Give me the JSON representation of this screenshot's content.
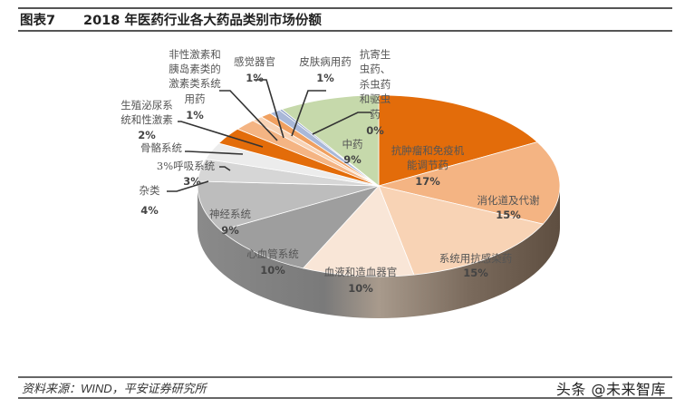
{
  "header": {
    "figure_label": "图表7",
    "title": "2018 年医药行业各大药品类别市场份额"
  },
  "footer": {
    "source": "资料来源：WIND，平安证券研究所",
    "watermark": "头条 @未来智库"
  },
  "chart_data": {
    "type": "pie",
    "title": "2018 年医药行业各大药品类别市场份额",
    "style": "3d-pie",
    "legend": "none (data labels on slices and leader lines)",
    "slices": [
      {
        "name": "抗肿瘤和免疫机能调节药",
        "value": 17,
        "label": "17%",
        "color": "#E36C0A"
      },
      {
        "name": "消化道及代谢",
        "value": 15,
        "label": "15%",
        "color": "#F4B483"
      },
      {
        "name": "系统用抗感染药",
        "value": 15,
        "label": "15%",
        "color": "#F8D3B5"
      },
      {
        "name": "血液和造血器官",
        "value": 10,
        "label": "10%",
        "color": "#F9E6D7"
      },
      {
        "name": "心血管系统",
        "value": 10,
        "label": "10%",
        "color": "#9E9E9E"
      },
      {
        "name": "神经系统",
        "value": 9,
        "label": "9%",
        "color": "#BDBDBD"
      },
      {
        "name": "杂类",
        "value": 4,
        "label": "4%",
        "color": "#D6D6D6"
      },
      {
        "name": "呼吸系统",
        "value": 3,
        "label": "3%",
        "color": "#ECECEC"
      },
      {
        "name": "骨骼系统",
        "value": 3,
        "label": "3%",
        "color": "#E36C0A"
      },
      {
        "name": "生殖泌尿系统和性激素",
        "value": 2,
        "label": "2%",
        "color": "#F4B483"
      },
      {
        "name": "非性激素和胰岛素类的激素类系统用药",
        "value": 1,
        "label": "1%",
        "color": "#F8D3B5"
      },
      {
        "name": "感觉器官",
        "value": 1,
        "label": "1%",
        "color": "#F0A060"
      },
      {
        "name": "皮肤病用药",
        "value": 1,
        "label": "1%",
        "color": "#A9B8D8"
      },
      {
        "name": "抗寄生虫药、杀虫药和驱虫药",
        "value": 0,
        "label": "0%",
        "color": "#8FA0C8"
      },
      {
        "name": "中药",
        "value": 9,
        "label": "9%",
        "color": "#C6D9AB"
      }
    ]
  },
  "labels": {
    "s0": {
      "l1": "抗肿瘤和免疫机",
      "l2": "能调节药",
      "pct": "17%"
    },
    "s1": {
      "l1": "消化道及代谢",
      "pct": "15%"
    },
    "s2": {
      "l1": "系统用抗感染药",
      "pct": "15%"
    },
    "s3": {
      "l1": "血液和造血器官",
      "pct": "10%"
    },
    "s4": {
      "l1": "心血管系统",
      "pct": "10%"
    },
    "s5": {
      "l1": "神经系统",
      "pct": "9%"
    },
    "s6": {
      "l1": "杂类",
      "pct": "4%"
    },
    "s7": {
      "l1": "3%呼吸系统",
      "pct": "3%"
    },
    "s8": {
      "l1": "骨骼系统"
    },
    "s9": {
      "l1": "生殖泌尿系",
      "l2": "统和性激素",
      "pct": "2%"
    },
    "s10": {
      "l1": "非性激素和",
      "l2": "胰岛素类的",
      "l3": "激素类系统",
      "l4": "用药",
      "pct": "1%"
    },
    "s11": {
      "l1": "感觉器官",
      "pct": "1%"
    },
    "s12": {
      "l1": "皮肤病用药",
      "pct": "1%"
    },
    "s13": {
      "l1": "抗寄生",
      "l2": "虫药、",
      "l3": "杀虫药",
      "l4": "和驱虫",
      "l5": "药",
      "pct": "0%"
    },
    "s14": {
      "l1": "中药",
      "pct": "9%"
    }
  }
}
